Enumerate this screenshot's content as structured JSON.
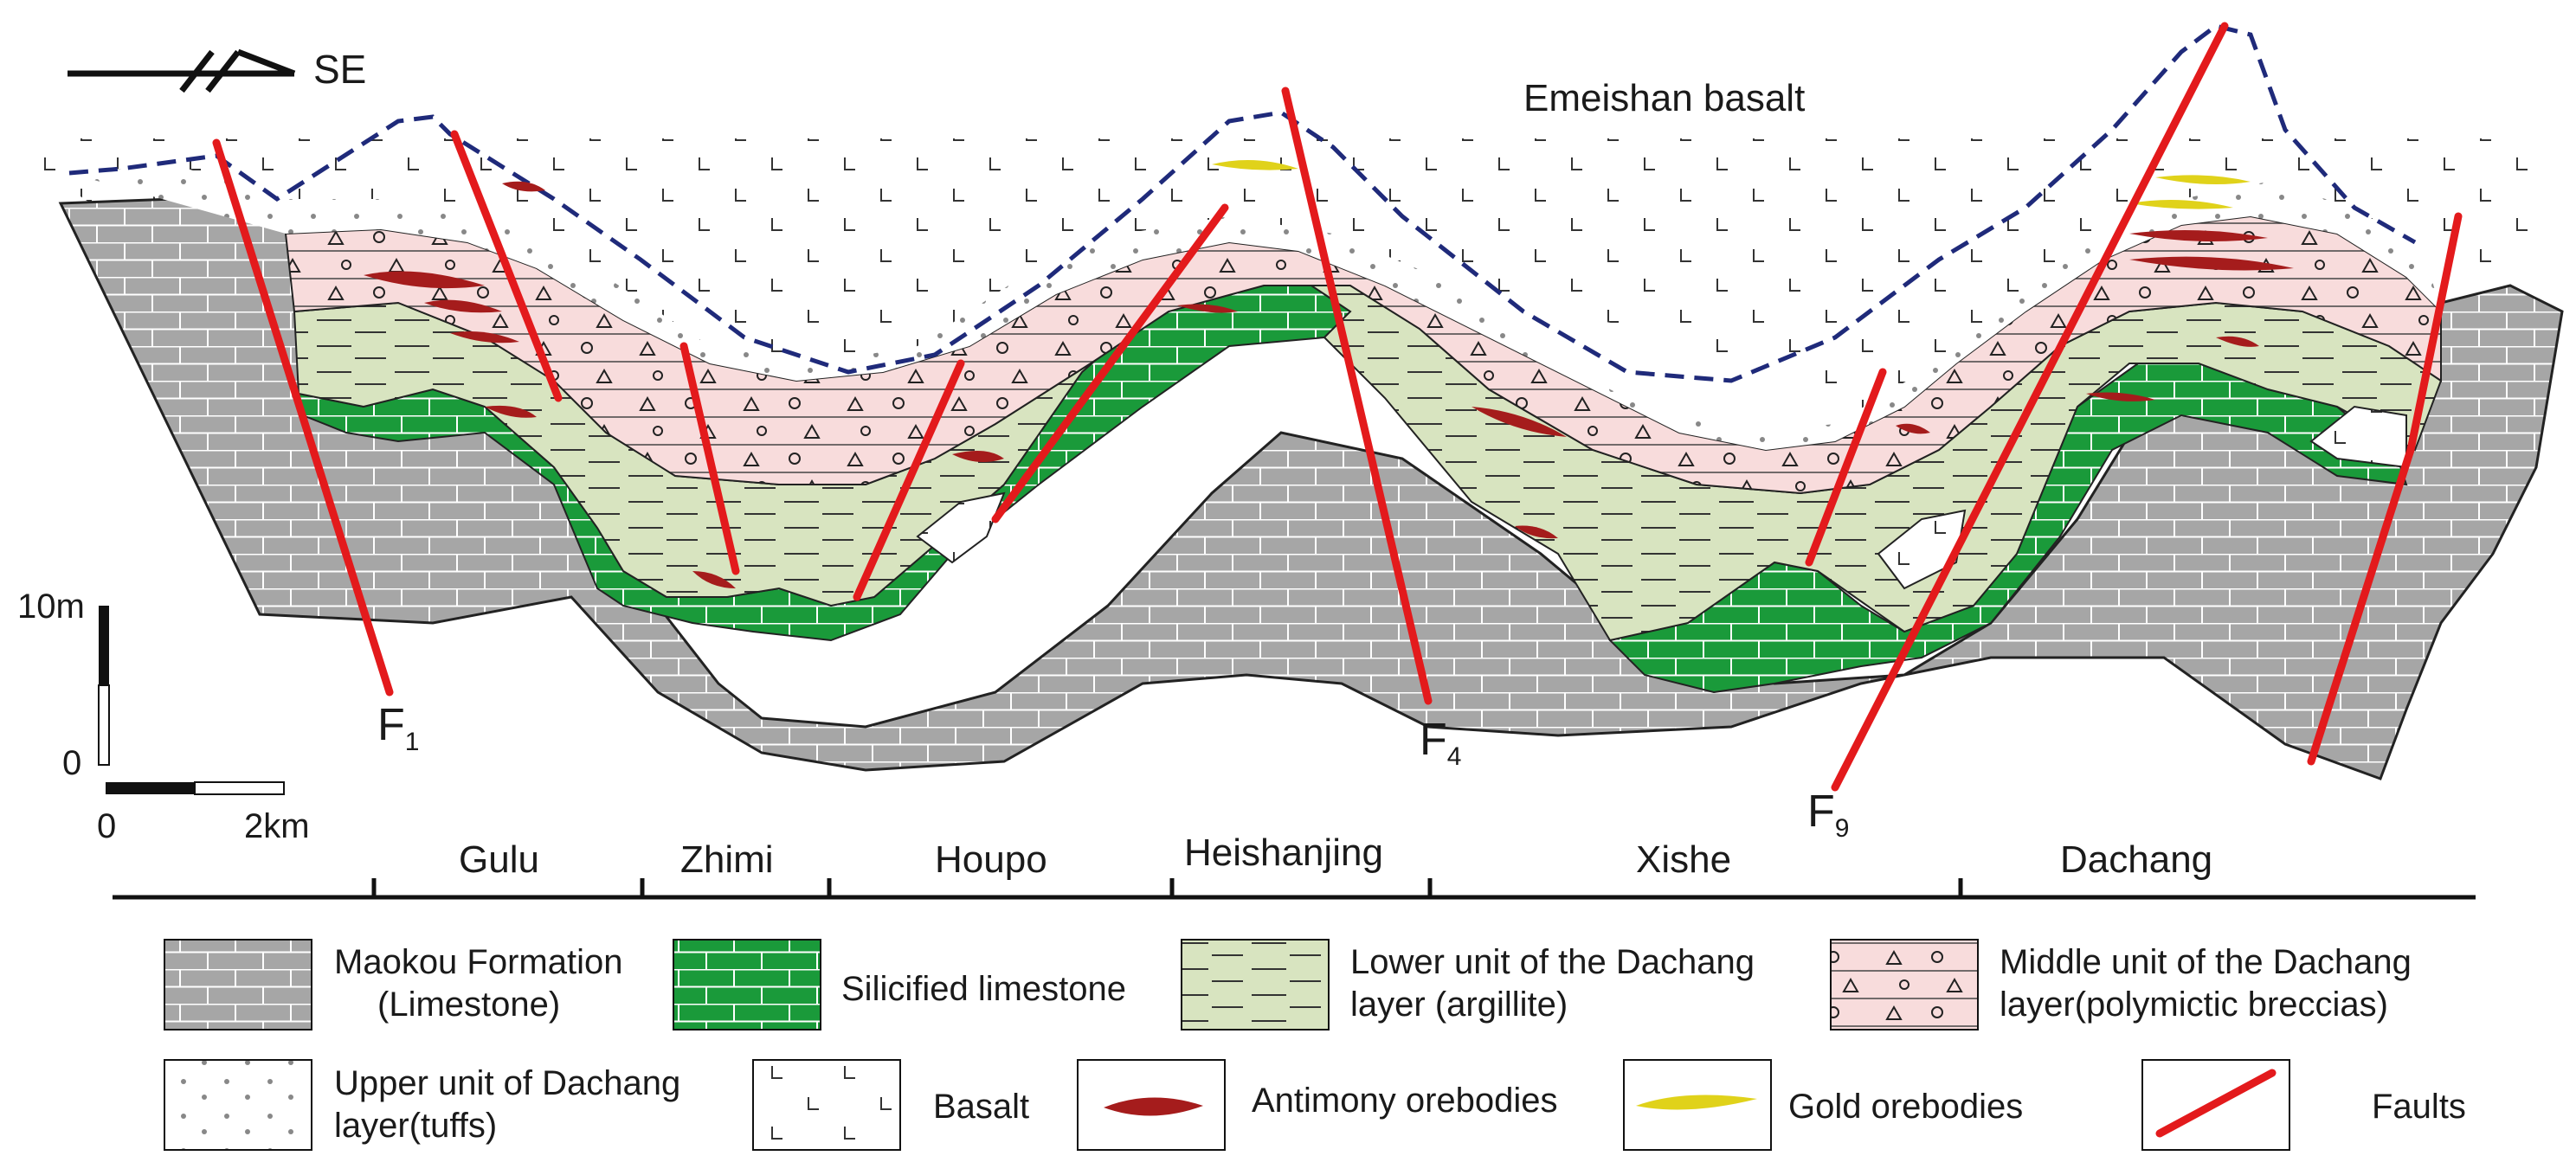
{
  "orientation": {
    "label": "SE",
    "icon": "strike-dip-arrow-icon"
  },
  "title_label": "Emeishan basalt",
  "scale": {
    "vertical_top": "10m",
    "vertical_bottom": "0",
    "horizontal_left": "0",
    "horizontal_right": "2km"
  },
  "faults": [
    {
      "main": "F",
      "sub": "1"
    },
    {
      "main": "F",
      "sub": "4"
    },
    {
      "main": "F",
      "sub": "9"
    }
  ],
  "sites": [
    "Gulu",
    "Zhimi",
    "Houpo",
    "Heishanjing",
    "Xishe",
    "Dachang"
  ],
  "legend": [
    {
      "line1": "Maokou Formation",
      "line2": "(Limestone)"
    },
    {
      "line1": "Silicified limestone",
      "line2": ""
    },
    {
      "line1": "Lower unit of the Dachang",
      "line2": "layer (argillite)"
    },
    {
      "line1": "Middle unit of the Dachang",
      "line2": "layer(polymictic breccias)"
    },
    {
      "line1": "Upper unit of Dachang",
      "line2": "layer(tuffs)"
    },
    {
      "line1": "Basalt",
      "line2": ""
    },
    {
      "line1": "Antimony orebodies",
      "line2": ""
    },
    {
      "line1": "Gold orebodies",
      "line2": ""
    },
    {
      "line1": "Faults",
      "line2": ""
    }
  ],
  "colors": {
    "limestone": "#a6a6a6",
    "silicified": "#1a9a3a",
    "argillite": "#d8e4c0",
    "breccia": "#f8dcdc",
    "fault": "#e31a1c",
    "antimony": "#a51c1c",
    "gold": "#e0d21a",
    "basalt_boundary": "#1f2a7a"
  }
}
